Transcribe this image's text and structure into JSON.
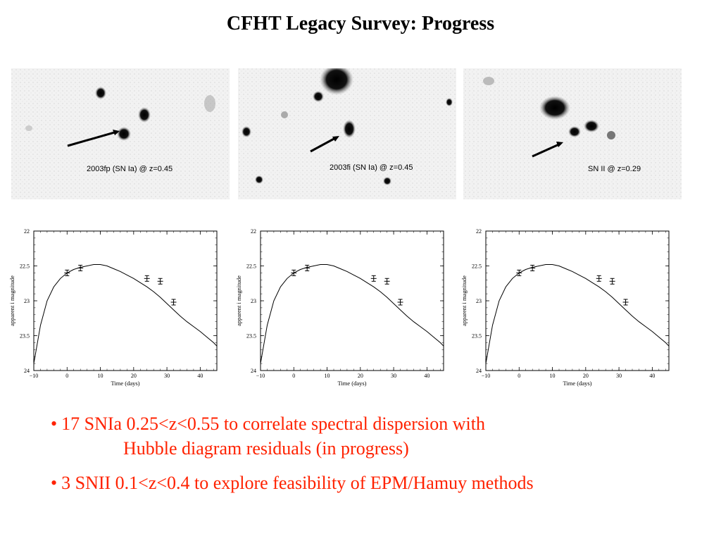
{
  "title": "CFHT Legacy Survey: Progress",
  "images": [
    {
      "label": "2003fp (SN Ia) @ z=0.45"
    },
    {
      "label": "2003fi (SN Ia) @ z=0.45"
    },
    {
      "label": "SN II @ z=0.29"
    }
  ],
  "chart_data": [
    {
      "type": "line",
      "xlabel": "Time (days)",
      "ylabel": "apparent i magnitude",
      "xlim": [
        -10,
        45
      ],
      "ylim": [
        24,
        22
      ],
      "xticks": [
        "−10",
        "0",
        "10",
        "20",
        "30",
        "40"
      ],
      "yticks": [
        "22",
        "22.5",
        "23",
        "23.5",
        "24"
      ],
      "points": [
        {
          "x": 0,
          "y": 22.6
        },
        {
          "x": 4,
          "y": 22.53
        },
        {
          "x": 24,
          "y": 22.68
        },
        {
          "x": 28,
          "y": 22.72
        },
        {
          "x": 32,
          "y": 23.02
        }
      ],
      "curve": [
        {
          "x": -10,
          "y": 23.9
        },
        {
          "x": -8,
          "y": 23.35
        },
        {
          "x": -6,
          "y": 23.0
        },
        {
          "x": -4,
          "y": 22.8
        },
        {
          "x": -2,
          "y": 22.68
        },
        {
          "x": 0,
          "y": 22.6
        },
        {
          "x": 2,
          "y": 22.55
        },
        {
          "x": 4,
          "y": 22.52
        },
        {
          "x": 6,
          "y": 22.5
        },
        {
          "x": 8,
          "y": 22.48
        },
        {
          "x": 10,
          "y": 22.48
        },
        {
          "x": 12,
          "y": 22.5
        },
        {
          "x": 14,
          "y": 22.54
        },
        {
          "x": 16,
          "y": 22.58
        },
        {
          "x": 18,
          "y": 22.63
        },
        {
          "x": 20,
          "y": 22.68
        },
        {
          "x": 22,
          "y": 22.74
        },
        {
          "x": 24,
          "y": 22.8
        },
        {
          "x": 26,
          "y": 22.87
        },
        {
          "x": 28,
          "y": 22.95
        },
        {
          "x": 30,
          "y": 23.04
        },
        {
          "x": 32,
          "y": 23.13
        },
        {
          "x": 34,
          "y": 23.22
        },
        {
          "x": 36,
          "y": 23.3
        },
        {
          "x": 38,
          "y": 23.37
        },
        {
          "x": 40,
          "y": 23.44
        },
        {
          "x": 42,
          "y": 23.52
        },
        {
          "x": 44,
          "y": 23.6
        },
        {
          "x": 45,
          "y": 23.65
        }
      ]
    },
    {
      "type": "line",
      "xlabel": "Time (days)",
      "ylabel": "apparent i magnitude",
      "xlim": [
        -10,
        45
      ],
      "ylim": [
        24,
        22
      ],
      "xticks": [
        "−10",
        "0",
        "10",
        "20",
        "30",
        "40"
      ],
      "yticks": [
        "22",
        "22.5",
        "23",
        "23.5",
        "24"
      ],
      "points": [
        {
          "x": 0,
          "y": 22.6
        },
        {
          "x": 4,
          "y": 22.53
        },
        {
          "x": 24,
          "y": 22.68
        },
        {
          "x": 28,
          "y": 22.72
        },
        {
          "x": 32,
          "y": 23.02
        }
      ],
      "curve": [
        {
          "x": -10,
          "y": 23.9
        },
        {
          "x": -8,
          "y": 23.35
        },
        {
          "x": -6,
          "y": 23.0
        },
        {
          "x": -4,
          "y": 22.8
        },
        {
          "x": -2,
          "y": 22.68
        },
        {
          "x": 0,
          "y": 22.6
        },
        {
          "x": 2,
          "y": 22.55
        },
        {
          "x": 4,
          "y": 22.52
        },
        {
          "x": 6,
          "y": 22.5
        },
        {
          "x": 8,
          "y": 22.48
        },
        {
          "x": 10,
          "y": 22.48
        },
        {
          "x": 12,
          "y": 22.5
        },
        {
          "x": 14,
          "y": 22.54
        },
        {
          "x": 16,
          "y": 22.58
        },
        {
          "x": 18,
          "y": 22.63
        },
        {
          "x": 20,
          "y": 22.68
        },
        {
          "x": 22,
          "y": 22.74
        },
        {
          "x": 24,
          "y": 22.8
        },
        {
          "x": 26,
          "y": 22.87
        },
        {
          "x": 28,
          "y": 22.95
        },
        {
          "x": 30,
          "y": 23.04
        },
        {
          "x": 32,
          "y": 23.13
        },
        {
          "x": 34,
          "y": 23.22
        },
        {
          "x": 36,
          "y": 23.3
        },
        {
          "x": 38,
          "y": 23.37
        },
        {
          "x": 40,
          "y": 23.44
        },
        {
          "x": 42,
          "y": 23.52
        },
        {
          "x": 44,
          "y": 23.6
        },
        {
          "x": 45,
          "y": 23.65
        }
      ]
    },
    {
      "type": "line",
      "xlabel": "Time (days)",
      "ylabel": "apparent i magnitude",
      "xlim": [
        -10,
        45
      ],
      "ylim": [
        24,
        22
      ],
      "xticks": [
        "−10",
        "0",
        "10",
        "20",
        "30",
        "40"
      ],
      "yticks": [
        "22",
        "22.5",
        "23",
        "23.5",
        "24"
      ],
      "points": [
        {
          "x": 0,
          "y": 22.6
        },
        {
          "x": 4,
          "y": 22.53
        },
        {
          "x": 24,
          "y": 22.68
        },
        {
          "x": 28,
          "y": 22.72
        },
        {
          "x": 32,
          "y": 23.02
        }
      ],
      "curve": [
        {
          "x": -10,
          "y": 23.9
        },
        {
          "x": -8,
          "y": 23.35
        },
        {
          "x": -6,
          "y": 23.0
        },
        {
          "x": -4,
          "y": 22.8
        },
        {
          "x": -2,
          "y": 22.68
        },
        {
          "x": 0,
          "y": 22.6
        },
        {
          "x": 2,
          "y": 22.55
        },
        {
          "x": 4,
          "y": 22.52
        },
        {
          "x": 6,
          "y": 22.5
        },
        {
          "x": 8,
          "y": 22.48
        },
        {
          "x": 10,
          "y": 22.48
        },
        {
          "x": 12,
          "y": 22.5
        },
        {
          "x": 14,
          "y": 22.54
        },
        {
          "x": 16,
          "y": 22.58
        },
        {
          "x": 18,
          "y": 22.63
        },
        {
          "x": 20,
          "y": 22.68
        },
        {
          "x": 22,
          "y": 22.74
        },
        {
          "x": 24,
          "y": 22.8
        },
        {
          "x": 26,
          "y": 22.87
        },
        {
          "x": 28,
          "y": 22.95
        },
        {
          "x": 30,
          "y": 23.04
        },
        {
          "x": 32,
          "y": 23.13
        },
        {
          "x": 34,
          "y": 23.22
        },
        {
          "x": 36,
          "y": 23.3
        },
        {
          "x": 38,
          "y": 23.37
        },
        {
          "x": 40,
          "y": 23.44
        },
        {
          "x": 42,
          "y": 23.52
        },
        {
          "x": 44,
          "y": 23.6
        },
        {
          "x": 45,
          "y": 23.65
        }
      ]
    }
  ],
  "bullets": {
    "b1_marker": "•",
    "b1_line1": "17 SNIa 0.25<z<0.55 to correlate spectral dispersion with",
    "b1_line2": "Hubble diagram residuals (in progress)",
    "b2_marker": "•",
    "b2_text": "3 SNII 0.1<z<0.4 to explore feasibility of EPM/Hamuy methods"
  },
  "colors": {
    "bullet_text": "#ff2200",
    "title": "#000000"
  }
}
